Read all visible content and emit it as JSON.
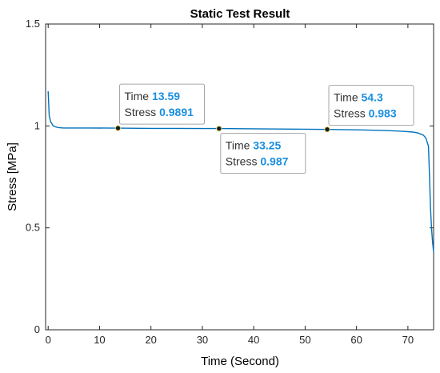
{
  "chart_data": {
    "type": "line",
    "title": "Static Test Result",
    "xlabel": "Time (Second)",
    "ylabel": "Stress [MPa]",
    "xlim": [
      -0.5,
      75
    ],
    "ylim": [
      0,
      1.5
    ],
    "x_ticks": [
      0,
      10,
      20,
      30,
      40,
      50,
      60,
      70
    ],
    "y_ticks": [
      0,
      0.5,
      1,
      1.5
    ],
    "y_tick_labels": [
      "0",
      "0.5",
      "1",
      "1.5"
    ],
    "grid": false,
    "line_color": "#0072bd",
    "series": [
      {
        "x": [
          0,
          0.2,
          0.5,
          1,
          1.5,
          2,
          3,
          5,
          8,
          13.59,
          20,
          25,
          33.25,
          40,
          45,
          50,
          54.3,
          60,
          65,
          68,
          70,
          71,
          72,
          73,
          73.5,
          74,
          74.2,
          74.4,
          74.6,
          74.8,
          75
        ],
        "y": [
          1.17,
          1.05,
          1.02,
          1.0,
          0.995,
          0.992,
          0.99,
          0.99,
          0.99,
          0.9891,
          0.988,
          0.988,
          0.987,
          0.986,
          0.985,
          0.984,
          0.983,
          0.981,
          0.978,
          0.975,
          0.972,
          0.97,
          0.965,
          0.955,
          0.94,
          0.9,
          0.75,
          0.6,
          0.5,
          0.43,
          0.38
        ]
      }
    ],
    "datatips": [
      {
        "x": 13.59,
        "y": 0.9891,
        "time_label": "Time",
        "time_value": "13.59",
        "stress_label": "Stress",
        "stress_value": "0.9891",
        "box": "above"
      },
      {
        "x": 33.25,
        "y": 0.987,
        "time_label": "Time",
        "time_value": "33.25",
        "stress_label": "Stress",
        "stress_value": "0.987",
        "box": "below"
      },
      {
        "x": 54.3,
        "y": 0.983,
        "time_label": "Time",
        "time_value": "54.3",
        "stress_label": "Stress",
        "stress_value": "0.983",
        "box": "above"
      }
    ]
  }
}
